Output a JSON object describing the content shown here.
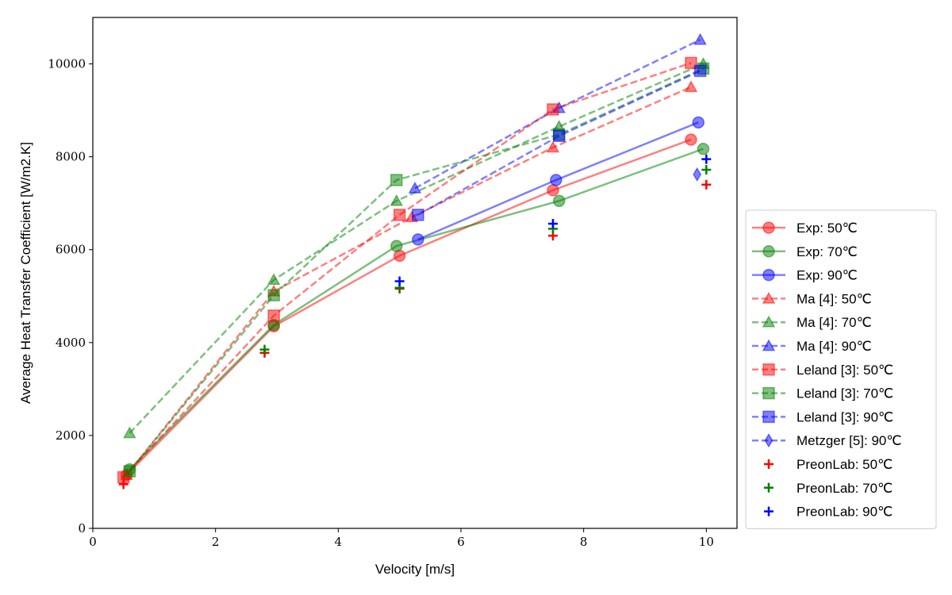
{
  "chart_data": {
    "type": "line",
    "title": "",
    "xlabel": "Velocity [m/s]",
    "ylabel": "Average Heat Transfer Coefficient [W/m2.K]",
    "xlim": [
      0,
      10.5
    ],
    "ylim": [
      0,
      11000
    ],
    "xticks": [
      0,
      2,
      4,
      6,
      8,
      10
    ],
    "yticks": [
      0,
      2000,
      4000,
      6000,
      8000,
      10000
    ],
    "grid": false,
    "legend_position": "outside-right",
    "series": [
      {
        "name": "Exp: 50℃",
        "color": "#ff0000",
        "marker": "circle",
        "line": "solid",
        "x": [
          0.55,
          2.95,
          5.0,
          7.5,
          9.75
        ],
        "y": [
          1150,
          4350,
          5870,
          7280,
          8370
        ]
      },
      {
        "name": "Exp: 70℃",
        "color": "#008000",
        "marker": "circle",
        "line": "solid",
        "x": [
          0.6,
          2.95,
          4.95,
          7.6,
          9.95
        ],
        "y": [
          1270,
          4380,
          6080,
          7050,
          8170
        ]
      },
      {
        "name": "Exp: 90℃",
        "color": "#0000ff",
        "marker": "circle",
        "line": "solid",
        "x": [
          5.3,
          7.55,
          9.87
        ],
        "y": [
          6220,
          7500,
          8740
        ]
      },
      {
        "name": "Ma [4]: 50℃",
        "color": "#ff0000",
        "marker": "triangle",
        "line": "dashed",
        "x": [
          0.55,
          2.95,
          5.2,
          7.5,
          9.75
        ],
        "y": [
          1150,
          5100,
          6700,
          8200,
          9500
        ]
      },
      {
        "name": "Ma [4]: 70℃",
        "color": "#008000",
        "marker": "triangle",
        "line": "dashed",
        "x": [
          0.6,
          2.95,
          4.95,
          7.6,
          9.95
        ],
        "y": [
          2050,
          5350,
          7050,
          8650,
          10000
        ]
      },
      {
        "name": "Ma [4]: 90℃",
        "color": "#0000ff",
        "marker": "triangle",
        "line": "dashed",
        "x": [
          5.25,
          7.6,
          9.9
        ],
        "y": [
          7320,
          9050,
          10520
        ]
      },
      {
        "name": "Leland [3]: 50℃",
        "color": "#ff0000",
        "marker": "square",
        "line": "dashed",
        "x": [
          0.5,
          2.95,
          5.0,
          7.5,
          9.75
        ],
        "y": [
          1100,
          4580,
          6750,
          9020,
          10020
        ]
      },
      {
        "name": "Leland [3]: 70℃",
        "color": "#008000",
        "marker": "square",
        "line": "dashed",
        "x": [
          0.6,
          2.95,
          4.95,
          7.6,
          9.95
        ],
        "y": [
          1230,
          5020,
          7500,
          8480,
          9900
        ]
      },
      {
        "name": "Leland [3]: 90℃",
        "color": "#0000ff",
        "marker": "square",
        "line": "dashed",
        "x": [
          5.3,
          7.6,
          9.9
        ],
        "y": [
          6750,
          8450,
          9850
        ]
      },
      {
        "name": "Metzger [5]: 90℃",
        "color": "#0000ff",
        "marker": "diamond",
        "line": "dashed",
        "x": [
          9.85
        ],
        "y": [
          7620
        ]
      },
      {
        "name": "PreonLab: 50℃",
        "color": "#ff0000",
        "marker": "plus",
        "line": "none",
        "x": [
          0.5,
          2.8,
          5.0,
          7.5,
          10.0
        ],
        "y": [
          950,
          3780,
          5160,
          6300,
          7400
        ]
      },
      {
        "name": "PreonLab: 70℃",
        "color": "#008000",
        "marker": "plus",
        "line": "none",
        "x": [
          2.8,
          5.0,
          7.5,
          10.0
        ],
        "y": [
          3850,
          5180,
          6450,
          7720
        ]
      },
      {
        "name": "PreonLab: 90℃",
        "color": "#0000ff",
        "marker": "plus",
        "line": "none",
        "x": [
          5.0,
          7.5,
          10.0
        ],
        "y": [
          5320,
          6560,
          7950
        ]
      }
    ]
  }
}
